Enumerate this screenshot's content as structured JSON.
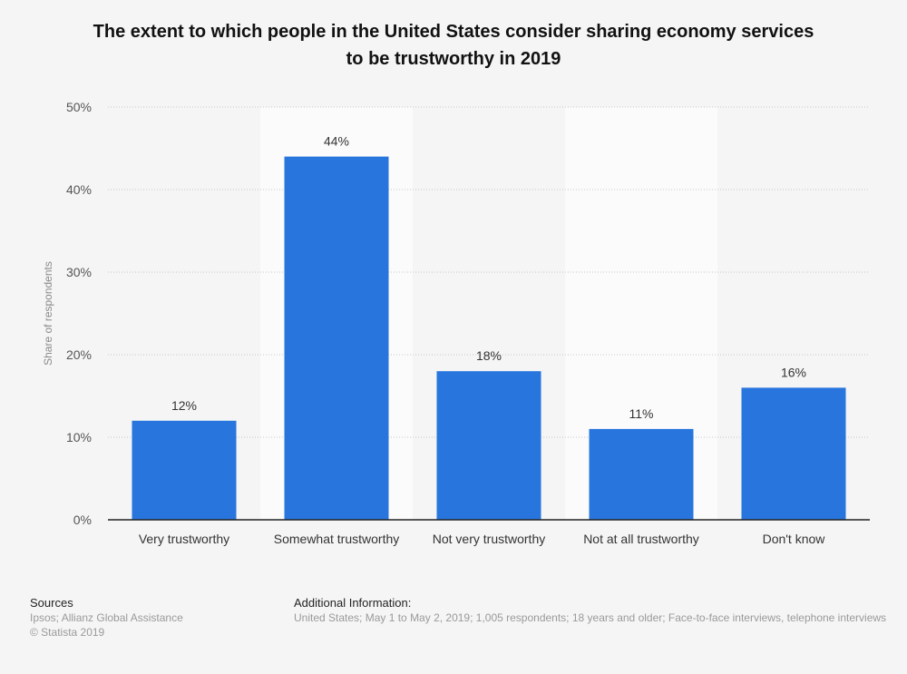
{
  "chart_data": {
    "type": "bar",
    "title": "The extent to which people in the United States consider sharing economy services to be trustworthy in 2019",
    "title_lines": [
      "The extent to which people in the United States consider sharing economy services",
      "to be trustworthy in 2019"
    ],
    "categories": [
      "Very trustworthy",
      "Somewhat trustworthy",
      "Not very trustworthy",
      "Not at all trustworthy",
      "Don't know"
    ],
    "values": [
      12,
      44,
      18,
      11,
      16
    ],
    "value_labels": [
      "12%",
      "44%",
      "18%",
      "11%",
      "16%"
    ],
    "xlabel": "",
    "ylabel": "Share of respondents",
    "ylim": [
      0,
      50
    ],
    "yticks": [
      0,
      10,
      20,
      30,
      40,
      50
    ],
    "ytick_labels": [
      "0%",
      "10%",
      "20%",
      "30%",
      "40%",
      "50%"
    ],
    "grid": true,
    "bar_color": "#2775dd"
  },
  "footer": {
    "sources_heading": "Sources",
    "sources_lines": [
      "Ipsos; Allianz Global Assistance",
      "© Statista 2019"
    ],
    "additional_heading": "Additional Information:",
    "additional_text": "United States; May 1 to May 2, 2019; 1,005 respondents; 18 years and older; Face-to-face interviews, telephone interviews"
  }
}
